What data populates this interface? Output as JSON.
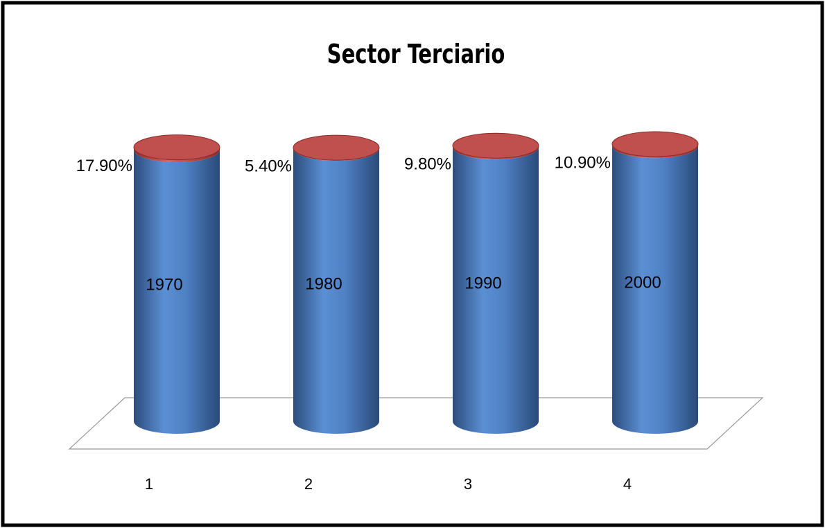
{
  "chart_data": {
    "type": "cylinder",
    "title": "Sector Terciario",
    "categories": [
      "1",
      "2",
      "3",
      "4"
    ],
    "series": [
      {
        "color": "#4f81bd",
        "values": [
          1970,
          1980,
          1990,
          2000
        ]
      },
      {
        "color": "#c0504d",
        "values": [
          17.9,
          5.4,
          9.8,
          10.9
        ],
        "value_labels": [
          "17.90%",
          "5.40%",
          "9.80%",
          "10.90%"
        ]
      }
    ]
  }
}
